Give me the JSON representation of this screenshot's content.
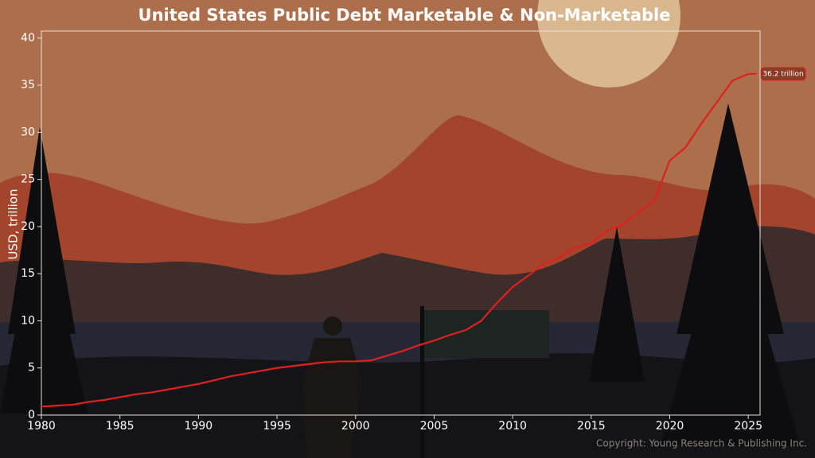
{
  "chart_data": {
    "type": "line",
    "title": "United States Public Debt Marketable & Non-Marketable",
    "ylabel": "USD, trillion",
    "copyright": "Copyright: Young Research & Publishing Inc.",
    "x": [
      1980,
      1981,
      1982,
      1983,
      1984,
      1985,
      1986,
      1987,
      1988,
      1989,
      1990,
      1991,
      1992,
      1993,
      1994,
      1995,
      1996,
      1997,
      1998,
      1999,
      2000,
      2001,
      2002,
      2003,
      2004,
      2005,
      2006,
      2007,
      2008,
      2009,
      2010,
      2011,
      2012,
      2013,
      2014,
      2015,
      2016,
      2017,
      2018,
      2019,
      2020,
      2021,
      2022,
      2023,
      2024,
      2025,
      2025.5
    ],
    "series": [
      {
        "name": "Public Debt",
        "color": "#e02020",
        "values": [
          0.9,
          1.0,
          1.1,
          1.4,
          1.6,
          1.9,
          2.2,
          2.4,
          2.7,
          3.0,
          3.3,
          3.7,
          4.1,
          4.4,
          4.7,
          5.0,
          5.2,
          5.4,
          5.6,
          5.7,
          5.7,
          5.8,
          6.3,
          6.8,
          7.4,
          7.9,
          8.5,
          9.0,
          10.0,
          11.9,
          13.6,
          14.8,
          16.1,
          16.7,
          17.8,
          18.2,
          19.6,
          20.2,
          21.5,
          22.7,
          27.0,
          28.4,
          30.9,
          33.2,
          35.5,
          36.2,
          36.2
        ],
        "value_labels": [
          null,
          null,
          null,
          null,
          null,
          null,
          null,
          null,
          null,
          null,
          null,
          null,
          null,
          null,
          null,
          null,
          null,
          null,
          null,
          null,
          null,
          null,
          null,
          null,
          null,
          null,
          null,
          null,
          null,
          null,
          null,
          null,
          null,
          null,
          null,
          null,
          null,
          null,
          null,
          null,
          null,
          null,
          null,
          null,
          null,
          null,
          "36.2 trillion"
        ]
      }
    ],
    "xlim": [
      1980,
      2025.75
    ],
    "xticks": [
      1980,
      1985,
      1990,
      1995,
      2000,
      2005,
      2010,
      2015,
      2020,
      2025
    ],
    "ylim": [
      0,
      40.75
    ],
    "yticks": [
      0,
      5,
      10,
      15,
      20,
      25,
      30,
      35,
      40
    ]
  }
}
